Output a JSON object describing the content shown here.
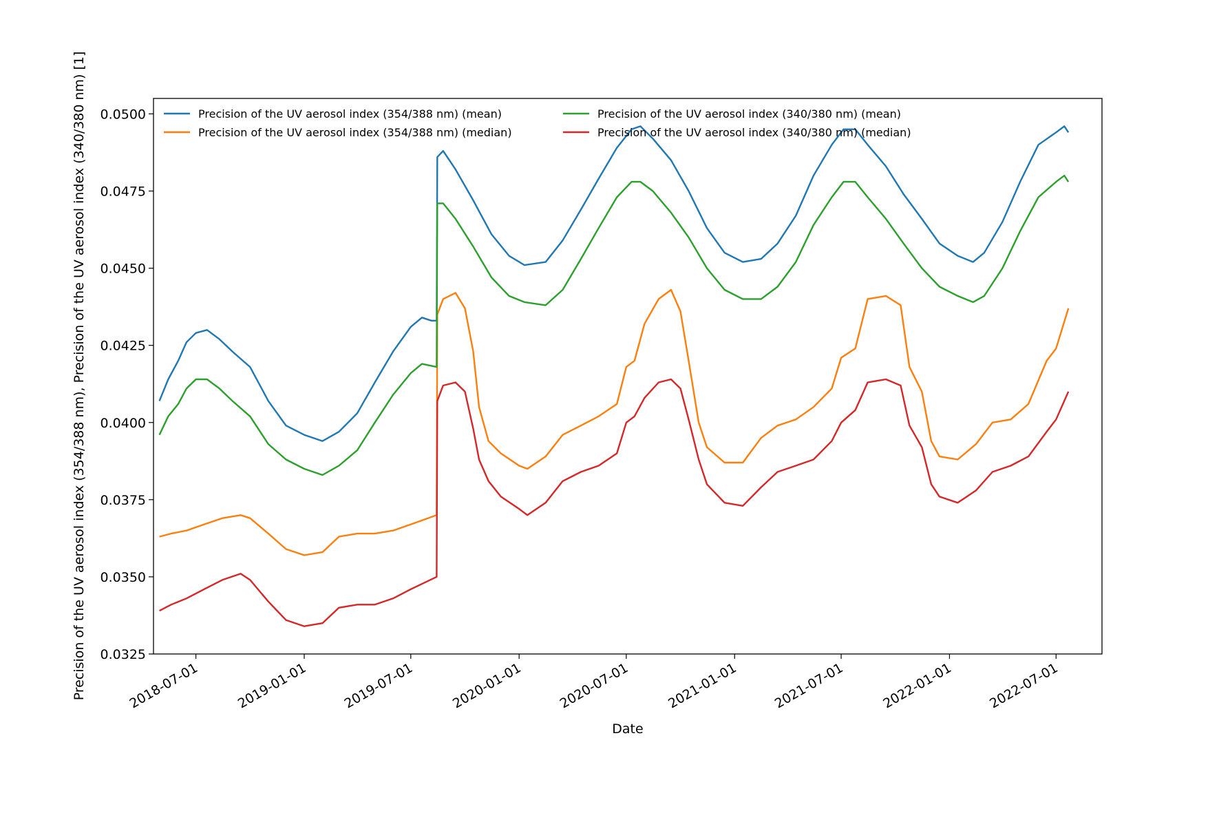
{
  "chart_data": {
    "type": "line",
    "title": "",
    "xlabel": "Date",
    "ylabel": "Precision of the UV aerosol index (354/388 nm), Precision of the UV aerosol index (340/380 nm) [1]",
    "xlim": [
      "2018-04-20",
      "2022-09-17"
    ],
    "ylim": [
      0.0325,
      0.0505
    ],
    "x_ticks": [
      "2018-07-01",
      "2019-01-01",
      "2019-07-01",
      "2020-01-01",
      "2020-07-01",
      "2021-01-01",
      "2021-07-01",
      "2022-01-01",
      "2022-07-01"
    ],
    "y_ticks": [
      "0.0325",
      "0.0350",
      "0.0375",
      "0.0400",
      "0.0425",
      "0.0450",
      "0.0475",
      "0.0500"
    ],
    "grid": false,
    "legend": {
      "position": "top-left",
      "columns": 2
    },
    "series": [
      {
        "name": "Precision of the UV aerosol index (354/388 nm) (mean)",
        "color": "#1f77b4",
        "points": [
          [
            "2018-04-30",
            0.0407
          ],
          [
            "2018-05-15",
            0.0414
          ],
          [
            "2018-06-01",
            0.042
          ],
          [
            "2018-06-15",
            0.0426
          ],
          [
            "2018-07-01",
            0.0429
          ],
          [
            "2018-07-20",
            0.043
          ],
          [
            "2018-08-10",
            0.0427
          ],
          [
            "2018-09-01",
            0.0423
          ],
          [
            "2018-10-01",
            0.0418
          ],
          [
            "2018-11-01",
            0.0407
          ],
          [
            "2018-12-01",
            0.0399
          ],
          [
            "2019-01-01",
            0.0396
          ],
          [
            "2019-02-01",
            0.0394
          ],
          [
            "2019-03-01",
            0.0397
          ],
          [
            "2019-04-01",
            0.0403
          ],
          [
            "2019-05-01",
            0.0413
          ],
          [
            "2019-06-01",
            0.0423
          ],
          [
            "2019-07-01",
            0.0431
          ],
          [
            "2019-07-20",
            0.0434
          ],
          [
            "2019-08-05",
            0.0433
          ],
          [
            "2019-08-14",
            0.0433
          ],
          [
            "2019-08-15",
            0.0486
          ],
          [
            "2019-08-25",
            0.0488
          ],
          [
            "2019-09-15",
            0.0482
          ],
          [
            "2019-10-15",
            0.0472
          ],
          [
            "2019-11-15",
            0.0461
          ],
          [
            "2019-12-15",
            0.0454
          ],
          [
            "2020-01-10",
            0.0451
          ],
          [
            "2020-02-15",
            0.0452
          ],
          [
            "2020-03-15",
            0.0459
          ],
          [
            "2020-04-15",
            0.0469
          ],
          [
            "2020-05-15",
            0.0479
          ],
          [
            "2020-06-15",
            0.0489
          ],
          [
            "2020-07-10",
            0.0495
          ],
          [
            "2020-07-25",
            0.0496
          ],
          [
            "2020-08-15",
            0.0492
          ],
          [
            "2020-09-15",
            0.0485
          ],
          [
            "2020-10-15",
            0.0475
          ],
          [
            "2020-11-15",
            0.0463
          ],
          [
            "2020-12-15",
            0.0455
          ],
          [
            "2021-01-15",
            0.0452
          ],
          [
            "2021-02-15",
            0.0453
          ],
          [
            "2021-03-15",
            0.0458
          ],
          [
            "2021-04-15",
            0.0467
          ],
          [
            "2021-05-15",
            0.048
          ],
          [
            "2021-06-15",
            0.049
          ],
          [
            "2021-07-05",
            0.0495
          ],
          [
            "2021-07-25",
            0.0495
          ],
          [
            "2021-08-15",
            0.049
          ],
          [
            "2021-09-15",
            0.0483
          ],
          [
            "2021-10-15",
            0.0474
          ],
          [
            "2021-11-15",
            0.0466
          ],
          [
            "2021-12-15",
            0.0458
          ],
          [
            "2022-01-15",
            0.0454
          ],
          [
            "2022-02-10",
            0.0452
          ],
          [
            "2022-03-01",
            0.0455
          ],
          [
            "2022-04-01",
            0.0465
          ],
          [
            "2022-05-01",
            0.0478
          ],
          [
            "2022-06-01",
            0.049
          ],
          [
            "2022-07-01",
            0.0494
          ],
          [
            "2022-07-15",
            0.0496
          ],
          [
            "2022-07-22",
            0.0494
          ]
        ]
      },
      {
        "name": "Precision of the UV aerosol index (354/388 nm) (median)",
        "color": "#ff7f0e",
        "points": [
          [
            "2018-04-30",
            0.0363
          ],
          [
            "2018-05-20",
            0.0364
          ],
          [
            "2018-06-15",
            0.0365
          ],
          [
            "2018-07-15",
            0.0367
          ],
          [
            "2018-08-15",
            0.0369
          ],
          [
            "2018-09-15",
            0.037
          ],
          [
            "2018-10-01",
            0.0369
          ],
          [
            "2018-11-01",
            0.0364
          ],
          [
            "2018-12-01",
            0.0359
          ],
          [
            "2019-01-01",
            0.0357
          ],
          [
            "2019-02-01",
            0.0358
          ],
          [
            "2019-03-01",
            0.0363
          ],
          [
            "2019-04-01",
            0.0364
          ],
          [
            "2019-05-01",
            0.0364
          ],
          [
            "2019-06-01",
            0.0365
          ],
          [
            "2019-07-01",
            0.0367
          ],
          [
            "2019-08-14",
            0.037
          ],
          [
            "2019-08-15",
            0.0435
          ],
          [
            "2019-08-25",
            0.044
          ],
          [
            "2019-09-15",
            0.0442
          ],
          [
            "2019-10-01",
            0.0437
          ],
          [
            "2019-10-15",
            0.0423
          ],
          [
            "2019-10-25",
            0.0405
          ],
          [
            "2019-11-10",
            0.0394
          ],
          [
            "2019-12-01",
            0.039
          ],
          [
            "2020-01-01",
            0.0386
          ],
          [
            "2020-01-15",
            0.0385
          ],
          [
            "2020-02-15",
            0.0389
          ],
          [
            "2020-03-15",
            0.0396
          ],
          [
            "2020-04-15",
            0.0399
          ],
          [
            "2020-05-15",
            0.0402
          ],
          [
            "2020-06-15",
            0.0406
          ],
          [
            "2020-07-01",
            0.0418
          ],
          [
            "2020-07-15",
            0.042
          ],
          [
            "2020-08-01",
            0.0432
          ],
          [
            "2020-08-25",
            0.044
          ],
          [
            "2020-09-15",
            0.0443
          ],
          [
            "2020-10-01",
            0.0436
          ],
          [
            "2020-10-15",
            0.042
          ],
          [
            "2020-11-01",
            0.04
          ],
          [
            "2020-11-15",
            0.0392
          ],
          [
            "2020-12-15",
            0.0387
          ],
          [
            "2021-01-15",
            0.0387
          ],
          [
            "2021-02-15",
            0.0395
          ],
          [
            "2021-03-15",
            0.0399
          ],
          [
            "2021-04-15",
            0.0401
          ],
          [
            "2021-05-15",
            0.0405
          ],
          [
            "2021-06-15",
            0.0411
          ],
          [
            "2021-07-01",
            0.0421
          ],
          [
            "2021-07-25",
            0.0424
          ],
          [
            "2021-08-15",
            0.044
          ],
          [
            "2021-09-15",
            0.0441
          ],
          [
            "2021-10-10",
            0.0438
          ],
          [
            "2021-10-25",
            0.0418
          ],
          [
            "2021-11-15",
            0.041
          ],
          [
            "2021-12-01",
            0.0394
          ],
          [
            "2021-12-15",
            0.0389
          ],
          [
            "2022-01-15",
            0.0388
          ],
          [
            "2022-02-15",
            0.0393
          ],
          [
            "2022-03-15",
            0.04
          ],
          [
            "2022-04-15",
            0.0401
          ],
          [
            "2022-05-15",
            0.0406
          ],
          [
            "2022-06-15",
            0.042
          ],
          [
            "2022-07-01",
            0.0424
          ],
          [
            "2022-07-22",
            0.0437
          ]
        ]
      },
      {
        "name": "Precision of the UV aerosol index (340/380 nm) (mean)",
        "color": "#2ca02c",
        "points": [
          [
            "2018-04-30",
            0.0396
          ],
          [
            "2018-05-15",
            0.0402
          ],
          [
            "2018-06-01",
            0.0406
          ],
          [
            "2018-06-15",
            0.0411
          ],
          [
            "2018-07-01",
            0.0414
          ],
          [
            "2018-07-20",
            0.0414
          ],
          [
            "2018-08-10",
            0.0411
          ],
          [
            "2018-09-01",
            0.0407
          ],
          [
            "2018-10-01",
            0.0402
          ],
          [
            "2018-11-01",
            0.0393
          ],
          [
            "2018-12-01",
            0.0388
          ],
          [
            "2019-01-01",
            0.0385
          ],
          [
            "2019-02-01",
            0.0383
          ],
          [
            "2019-03-01",
            0.0386
          ],
          [
            "2019-04-01",
            0.0391
          ],
          [
            "2019-05-01",
            0.04
          ],
          [
            "2019-06-01",
            0.0409
          ],
          [
            "2019-07-01",
            0.0416
          ],
          [
            "2019-07-20",
            0.0419
          ],
          [
            "2019-08-14",
            0.0418
          ],
          [
            "2019-08-15",
            0.0471
          ],
          [
            "2019-08-25",
            0.0471
          ],
          [
            "2019-09-15",
            0.0466
          ],
          [
            "2019-10-15",
            0.0457
          ],
          [
            "2019-11-15",
            0.0447
          ],
          [
            "2019-12-15",
            0.0441
          ],
          [
            "2020-01-10",
            0.0439
          ],
          [
            "2020-02-15",
            0.0438
          ],
          [
            "2020-03-15",
            0.0443
          ],
          [
            "2020-04-15",
            0.0453
          ],
          [
            "2020-05-15",
            0.0463
          ],
          [
            "2020-06-15",
            0.0473
          ],
          [
            "2020-07-10",
            0.0478
          ],
          [
            "2020-07-25",
            0.0478
          ],
          [
            "2020-08-15",
            0.0475
          ],
          [
            "2020-09-15",
            0.0468
          ],
          [
            "2020-10-15",
            0.046
          ],
          [
            "2020-11-15",
            0.045
          ],
          [
            "2020-12-15",
            0.0443
          ],
          [
            "2021-01-15",
            0.044
          ],
          [
            "2021-02-15",
            0.044
          ],
          [
            "2021-03-15",
            0.0444
          ],
          [
            "2021-04-15",
            0.0452
          ],
          [
            "2021-05-15",
            0.0464
          ],
          [
            "2021-06-15",
            0.0473
          ],
          [
            "2021-07-05",
            0.0478
          ],
          [
            "2021-07-25",
            0.0478
          ],
          [
            "2021-08-15",
            0.0473
          ],
          [
            "2021-09-15",
            0.0466
          ],
          [
            "2021-10-15",
            0.0458
          ],
          [
            "2021-11-15",
            0.045
          ],
          [
            "2021-12-15",
            0.0444
          ],
          [
            "2022-01-15",
            0.0441
          ],
          [
            "2022-02-10",
            0.0439
          ],
          [
            "2022-03-01",
            0.0441
          ],
          [
            "2022-04-01",
            0.045
          ],
          [
            "2022-05-01",
            0.0462
          ],
          [
            "2022-06-01",
            0.0473
          ],
          [
            "2022-07-01",
            0.0478
          ],
          [
            "2022-07-15",
            0.048
          ],
          [
            "2022-07-22",
            0.0478
          ]
        ]
      },
      {
        "name": "Precision of the UV aerosol index (340/380 nm) (median)",
        "color": "#d62728",
        "points": [
          [
            "2018-04-30",
            0.0339
          ],
          [
            "2018-05-20",
            0.0341
          ],
          [
            "2018-06-15",
            0.0343
          ],
          [
            "2018-07-15",
            0.0346
          ],
          [
            "2018-08-15",
            0.0349
          ],
          [
            "2018-09-15",
            0.0351
          ],
          [
            "2018-10-01",
            0.0349
          ],
          [
            "2018-11-01",
            0.0342
          ],
          [
            "2018-12-01",
            0.0336
          ],
          [
            "2019-01-01",
            0.0334
          ],
          [
            "2019-02-01",
            0.0335
          ],
          [
            "2019-03-01",
            0.034
          ],
          [
            "2019-04-01",
            0.0341
          ],
          [
            "2019-05-01",
            0.0341
          ],
          [
            "2019-06-01",
            0.0343
          ],
          [
            "2019-07-01",
            0.0346
          ],
          [
            "2019-08-14",
            0.035
          ],
          [
            "2019-08-15",
            0.0407
          ],
          [
            "2019-08-25",
            0.0412
          ],
          [
            "2019-09-15",
            0.0413
          ],
          [
            "2019-10-01",
            0.041
          ],
          [
            "2019-10-15",
            0.0398
          ],
          [
            "2019-10-25",
            0.0388
          ],
          [
            "2019-11-10",
            0.0381
          ],
          [
            "2019-12-01",
            0.0376
          ],
          [
            "2020-01-01",
            0.0372
          ],
          [
            "2020-01-15",
            0.037
          ],
          [
            "2020-02-15",
            0.0374
          ],
          [
            "2020-03-15",
            0.0381
          ],
          [
            "2020-04-15",
            0.0384
          ],
          [
            "2020-05-15",
            0.0386
          ],
          [
            "2020-06-15",
            0.039
          ],
          [
            "2020-07-01",
            0.04
          ],
          [
            "2020-07-15",
            0.0402
          ],
          [
            "2020-08-01",
            0.0408
          ],
          [
            "2020-08-25",
            0.0413
          ],
          [
            "2020-09-15",
            0.0414
          ],
          [
            "2020-10-01",
            0.0411
          ],
          [
            "2020-10-15",
            0.0401
          ],
          [
            "2020-11-01",
            0.0388
          ],
          [
            "2020-11-15",
            0.038
          ],
          [
            "2020-12-15",
            0.0374
          ],
          [
            "2021-01-15",
            0.0373
          ],
          [
            "2021-02-15",
            0.0379
          ],
          [
            "2021-03-15",
            0.0384
          ],
          [
            "2021-04-15",
            0.0386
          ],
          [
            "2021-05-15",
            0.0388
          ],
          [
            "2021-06-15",
            0.0394
          ],
          [
            "2021-07-01",
            0.04
          ],
          [
            "2021-07-25",
            0.0404
          ],
          [
            "2021-08-15",
            0.0413
          ],
          [
            "2021-09-15",
            0.0414
          ],
          [
            "2021-10-10",
            0.0412
          ],
          [
            "2021-10-25",
            0.0399
          ],
          [
            "2021-11-15",
            0.0392
          ],
          [
            "2021-12-01",
            0.038
          ],
          [
            "2021-12-15",
            0.0376
          ],
          [
            "2022-01-15",
            0.0374
          ],
          [
            "2022-02-15",
            0.0378
          ],
          [
            "2022-03-15",
            0.0384
          ],
          [
            "2022-04-15",
            0.0386
          ],
          [
            "2022-05-15",
            0.0389
          ],
          [
            "2022-06-15",
            0.0397
          ],
          [
            "2022-07-01",
            0.0401
          ],
          [
            "2022-07-22",
            0.041
          ]
        ]
      }
    ]
  }
}
